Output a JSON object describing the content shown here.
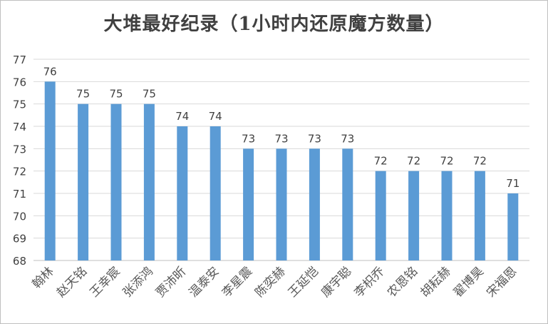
{
  "chart_data": {
    "type": "bar",
    "title": "大堆最好纪录（1小时内还原魔方数量）",
    "xlabel": "",
    "ylabel": "",
    "categories": [
      "翰林",
      "赵天铭",
      "王幸宸",
      "张添鸿",
      "贾沛昕",
      "温泰安",
      "李星震",
      "陈奕赫",
      "王延恺",
      "康宇聪",
      "李枳乔",
      "农恩铭",
      "胡耘赫",
      "翟博昊",
      "宋福恩"
    ],
    "values": [
      76,
      75,
      75,
      75,
      74,
      74,
      73,
      73,
      73,
      73,
      72,
      72,
      72,
      72,
      71
    ],
    "data_labels": [
      "76",
      "75",
      "75",
      "75",
      "74",
      "74",
      "73",
      "73",
      "73",
      "73",
      "72",
      "72",
      "72",
      "72",
      "71"
    ],
    "ylim": [
      68,
      77
    ],
    "yticks": [
      "68",
      "69",
      "70",
      "71",
      "72",
      "73",
      "74",
      "75",
      "76",
      "77"
    ],
    "grid": true,
    "legend": "none",
    "bar_color": "#5b9bd5"
  }
}
